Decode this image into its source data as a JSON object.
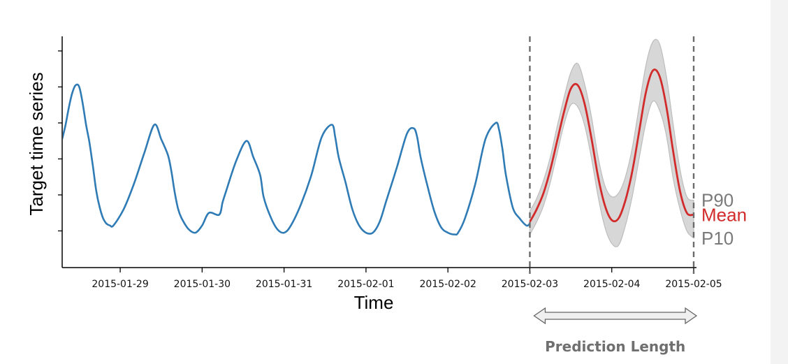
{
  "chart_data": {
    "type": "line",
    "xlabel": "Time",
    "ylabel": "Target time series",
    "x_ticks": [
      "2015-01-29",
      "2015-01-30",
      "2015-01-31",
      "2015-02-01",
      "2015-02-02",
      "2015-02-03",
      "2015-02-04",
      "2015-02-05"
    ],
    "xlim": [
      "2015-01-28T07:00",
      "2015-02-05T00:00"
    ],
    "y_ticks_labeled": false,
    "ylim": [
      0,
      6.6
    ],
    "grid": false,
    "colors": {
      "history": "#2f7bb5",
      "mean": "#d22b2b",
      "band": "#d7d7d7",
      "p_labels": "#7a7a7a"
    },
    "history": {
      "x": [
        "2015-01-28T07:00",
        "2015-01-28T08:00",
        "2015-01-28T09:00",
        "2015-01-28T10:00",
        "2015-01-28T11:00",
        "2015-01-28T12:00",
        "2015-01-28T13:00",
        "2015-01-28T14:00",
        "2015-01-28T15:00",
        "2015-01-28T16:00",
        "2015-01-28T17:00",
        "2015-01-28T18:00",
        "2015-01-28T19:00",
        "2015-01-28T20:00",
        "2015-01-28T21:00",
        "2015-01-28T22:00",
        "2015-01-29T01:00",
        "2015-01-29T04:00",
        "2015-01-29T07:00",
        "2015-01-29T10:00",
        "2015-01-29T12:00",
        "2015-01-29T14:00",
        "2015-01-29T15:00",
        "2015-01-29T16:00",
        "2015-01-29T17:00",
        "2015-01-29T18:00",
        "2015-01-29T20:00",
        "2015-01-29T22:00",
        "2015-01-30T00:00",
        "2015-01-30T02:00",
        "2015-01-30T05:00",
        "2015-01-30T06:00",
        "2015-01-30T07:00",
        "2015-01-30T10:00",
        "2015-01-30T13:00",
        "2015-01-30T15:00",
        "2015-01-30T17:00",
        "2015-01-30T18:00",
        "2015-01-30T20:00",
        "2015-01-30T22:00",
        "2015-01-31T00:00",
        "2015-01-31T02:00",
        "2015-01-31T05:00",
        "2015-01-31T08:00",
        "2015-01-31T11:00",
        "2015-01-31T14:00",
        "2015-01-31T15:00",
        "2015-01-31T16:00",
        "2015-01-31T18:00",
        "2015-01-31T20:00",
        "2015-01-31T22:00",
        "2015-02-01T00:00",
        "2015-02-01T02:00",
        "2015-02-01T04:00",
        "2015-02-01T06:00",
        "2015-02-01T09:00",
        "2015-02-01T12:00",
        "2015-02-01T14:00",
        "2015-02-01T15:00",
        "2015-02-01T16:00",
        "2015-02-01T18:00",
        "2015-02-01T20:00",
        "2015-02-01T22:00",
        "2015-02-02T00:00",
        "2015-02-02T02:00",
        "2015-02-02T03:00",
        "2015-02-02T05:00",
        "2015-02-02T08:00",
        "2015-02-02T11:00",
        "2015-02-02T14:00",
        "2015-02-02T15:00",
        "2015-02-02T16:00",
        "2015-02-02T17:00",
        "2015-02-02T19:00",
        "2015-02-02T21:00",
        "2015-02-02T23:00",
        "2015-02-03T00:00"
      ],
      "y": [
        3.55,
        3.95,
        4.45,
        4.85,
        5.05,
        5.0,
        4.55,
        3.95,
        3.45,
        2.8,
        2.1,
        1.65,
        1.35,
        1.2,
        1.15,
        1.15,
        1.6,
        2.3,
        3.15,
        3.95,
        3.55,
        3.1,
        2.65,
        2.05,
        1.6,
        1.35,
        1.05,
        0.95,
        1.15,
        1.5,
        1.45,
        1.8,
        2.1,
        2.95,
        3.5,
        3.05,
        2.55,
        1.95,
        1.4,
        1.05,
        0.95,
        1.15,
        1.75,
        2.55,
        3.6,
        3.95,
        3.6,
        3.05,
        2.35,
        1.6,
        1.15,
        0.95,
        0.95,
        1.25,
        1.85,
        2.75,
        3.7,
        3.85,
        3.6,
        3.05,
        2.25,
        1.55,
        1.1,
        0.95,
        0.9,
        0.95,
        1.35,
        2.3,
        3.55,
        4.0,
        3.8,
        3.25,
        2.55,
        1.65,
        1.35,
        1.15,
        1.2
      ]
    },
    "forecast": {
      "x": [
        "2015-02-03T00:00",
        "2015-02-03T02:00",
        "2015-02-03T04:00",
        "2015-02-03T06:00",
        "2015-02-03T08:00",
        "2015-02-03T10:00",
        "2015-02-03T12:00",
        "2015-02-03T14:00",
        "2015-02-03T16:00",
        "2015-02-03T18:00",
        "2015-02-03T20:00",
        "2015-02-03T22:00",
        "2015-02-04T00:00",
        "2015-02-04T02:00",
        "2015-02-04T04:00",
        "2015-02-04T06:00",
        "2015-02-04T08:00",
        "2015-02-04T10:00",
        "2015-02-04T12:00",
        "2015-02-04T14:00",
        "2015-02-04T16:00",
        "2015-02-04T18:00",
        "2015-02-04T20:00",
        "2015-02-04T22:00",
        "2015-02-05T00:00"
      ],
      "mean": [
        1.25,
        1.6,
        2.05,
        2.7,
        3.5,
        4.3,
        4.95,
        5.05,
        4.55,
        3.6,
        2.5,
        1.7,
        1.3,
        1.35,
        1.85,
        2.65,
        3.75,
        4.85,
        5.45,
        5.3,
        4.45,
        3.2,
        2.1,
        1.5,
        1.45
      ],
      "p90": [
        1.55,
        1.9,
        2.4,
        3.05,
        3.9,
        4.7,
        5.4,
        5.65,
        5.1,
        4.2,
        3.05,
        2.25,
        1.95,
        2.05,
        2.5,
        3.3,
        4.45,
        5.6,
        6.25,
        6.2,
        5.3,
        3.95,
        2.7,
        1.95,
        1.85
      ],
      "p10": [
        0.9,
        1.25,
        1.7,
        2.35,
        3.15,
        3.95,
        4.5,
        4.45,
        3.95,
        3.05,
        1.95,
        1.1,
        0.65,
        0.6,
        1.15,
        1.95,
        3.0,
        4.0,
        4.6,
        4.35,
        3.65,
        2.45,
        1.6,
        1.0,
        0.8
      ]
    },
    "labels": {
      "p90": "P90",
      "mean": "Mean",
      "p10": "P10"
    },
    "prediction_length_label": "Prediction Length"
  }
}
